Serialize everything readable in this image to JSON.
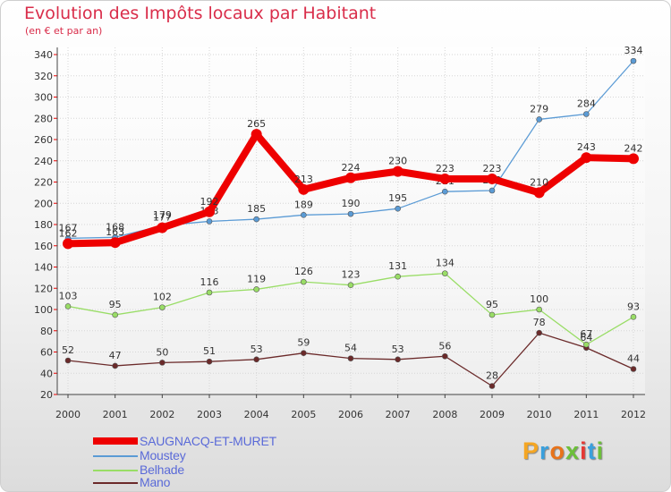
{
  "title": "Evolution des Impôts locaux par Habitant",
  "subtitle": "(en € et par an)",
  "colors": {
    "title": "#d92d4a",
    "axis_text": "#333333"
  },
  "chart_data": {
    "type": "line",
    "title": "Evolution des Impôts locaux par Habitant",
    "ylabel": "(en € et par an)",
    "xlabel": "",
    "categories": [
      "2000",
      "2001",
      "2002",
      "2003",
      "2004",
      "2005",
      "2006",
      "2007",
      "2008",
      "2009",
      "2010",
      "2011",
      "2012"
    ],
    "ylim": [
      20,
      340
    ],
    "yticks": [
      20,
      40,
      60,
      80,
      100,
      120,
      140,
      160,
      180,
      200,
      220,
      240,
      260,
      280,
      300,
      320,
      340
    ],
    "grid": true,
    "legend_position": "bottom-left",
    "series": [
      {
        "name": "SAUGNACQ-ET-MURET",
        "color": "#ee0000",
        "values": [
          162,
          163,
          177,
          192,
          265,
          213,
          224,
          230,
          223,
          223,
          210,
          243,
          242
        ]
      },
      {
        "name": "Moustey",
        "color": "#5b9bd5",
        "values": [
          167,
          168,
          179,
          183,
          185,
          189,
          190,
          195,
          211,
          212,
          279,
          284,
          334
        ]
      },
      {
        "name": "Belhade",
        "color": "#99dd66",
        "values": [
          103,
          95,
          102,
          116,
          119,
          126,
          123,
          131,
          134,
          95,
          100,
          67,
          93
        ]
      },
      {
        "name": "Mano",
        "color": "#6b2a2a",
        "values": [
          52,
          47,
          50,
          51,
          53,
          59,
          54,
          53,
          56,
          28,
          78,
          64,
          44
        ]
      }
    ]
  },
  "logo": {
    "letters": [
      "P",
      "r",
      "o",
      "x",
      "i",
      "t",
      "i"
    ],
    "colors": [
      "#f5a623",
      "#3aa0dd",
      "#e8731a",
      "#6cbf3a",
      "#e53935",
      "#3aa0dd",
      "#6cbf3a"
    ]
  }
}
